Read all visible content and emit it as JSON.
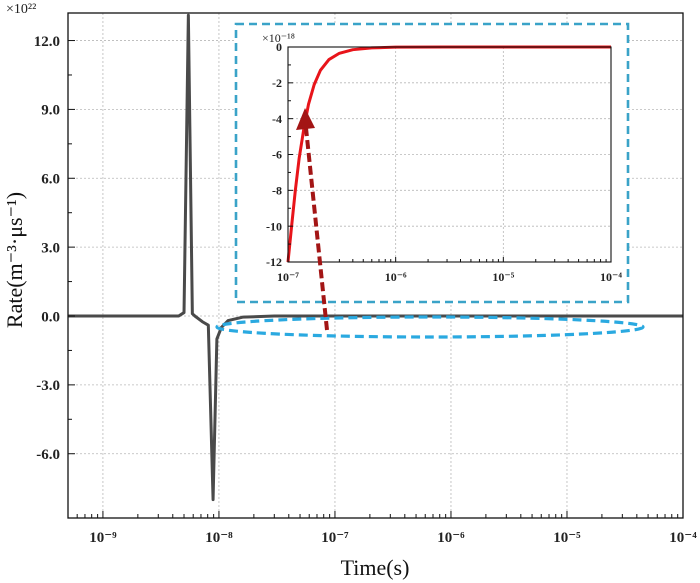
{
  "chart_data": [
    {
      "type": "line",
      "xlabel": "Time(s)",
      "ylabel": "Rate(m⁻³·μs⁻¹)",
      "y_multiplier": "×10²²",
      "x_scale": "log",
      "xlim": [
        5e-10,
        0.0001
      ],
      "ylim": [
        -8.8,
        13.2
      ],
      "grid": true,
      "x_tick_labels": [
        "10⁻⁹",
        "10⁻⁸",
        "10⁻⁷",
        "10⁻⁶",
        "10⁻⁵",
        "10⁻⁴"
      ],
      "y_ticks": [
        12.0,
        9.0,
        6.0,
        3.0,
        0.0,
        -3.0,
        -6.0
      ],
      "y_tick_labels": [
        "12.0",
        "9.0",
        "6.0",
        "3.0",
        "0.0",
        "-3.0",
        "-6.0"
      ],
      "series": [
        {
          "color": "#4a4a4a",
          "x": [
            5e-10,
            4.5e-09,
            5e-09,
            5.45e-09,
            5.9e-09,
            6.2e-09,
            7.2e-09,
            8.1e-09,
            8.9e-09,
            9.6e-09,
            1.05e-08,
            1.2e-08,
            1.6e-08,
            3e-08,
            1e-07,
            1e-06,
            1e-05,
            0.0001
          ],
          "y": [
            0,
            0,
            0.15,
            13.1,
            0.1,
            0.0,
            -0.25,
            -0.4,
            -8.0,
            -1.0,
            -0.5,
            -0.2,
            -0.05,
            0,
            0,
            0,
            0,
            0
          ]
        }
      ],
      "annotations": [
        {
          "kind": "ellipse",
          "color": "#2aa9e0",
          "note": "highlighted near-zero region"
        },
        {
          "kind": "arrow",
          "color": "#a31515",
          "note": "points to inset"
        }
      ]
    },
    {
      "type": "line",
      "role": "inset",
      "x_scale": "log",
      "xlim": [
        1e-07,
        0.0001
      ],
      "ylim": [
        -12,
        0
      ],
      "y_multiplier": "×10⁻¹⁸",
      "grid": true,
      "x_tick_labels": [
        "10⁻⁷",
        "10⁻⁶",
        "10⁻⁵",
        "10⁻⁴"
      ],
      "y_ticks": [
        0,
        -2,
        -4,
        -6,
        -8,
        -10,
        -12
      ],
      "y_tick_labels": [
        "0",
        "-2",
        "-4",
        "-6",
        "-8",
        "-10",
        "-12"
      ],
      "series": [
        {
          "color": "#e8141a",
          "x": [
            1e-07,
            1.08e-07,
            1.17e-07,
            1.27e-07,
            1.4e-07,
            1.55e-07,
            1.75e-07,
            2e-07,
            2.4e-07,
            3e-07,
            4e-07,
            6e-07,
            1e-06,
            3e-06,
            1e-05,
            0.0001
          ],
          "y": [
            -12,
            -10,
            -8,
            -6.2,
            -4.6,
            -3.2,
            -2.1,
            -1.3,
            -0.7,
            -0.35,
            -0.15,
            -0.05,
            -0.01,
            0,
            0,
            0
          ]
        }
      ]
    }
  ]
}
